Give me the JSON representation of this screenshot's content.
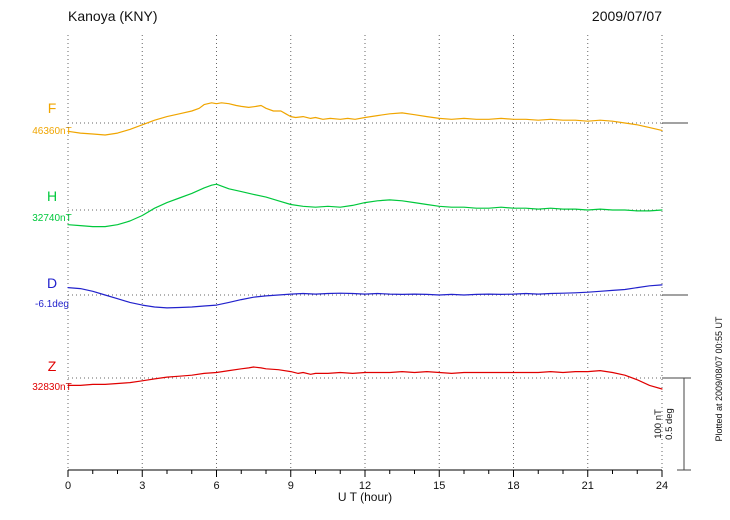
{
  "chart_data": {
    "type": "line",
    "station": "Kanoya (KNY)",
    "date": "2009/07/07",
    "xlabel": "U T (hour)",
    "x_range": [
      0,
      24
    ],
    "x_ticks": [
      0,
      3,
      6,
      9,
      12,
      15,
      18,
      21,
      24
    ],
    "scale_bar": {
      "lines": [
        "100 nT",
        "0.5 deg"
      ]
    },
    "plotted_at": "Plotted at 2009/08/07 00:55 UT",
    "series": [
      {
        "name": "F",
        "unit": "nT",
        "color": "#f0a500",
        "baseline_label": "46360nT",
        "baseline": 46360,
        "points": [
          [
            0,
            -9
          ],
          [
            0.5,
            -11
          ],
          [
            1,
            -12
          ],
          [
            1.5,
            -13
          ],
          [
            2,
            -11
          ],
          [
            2.5,
            -7
          ],
          [
            3,
            -2
          ],
          [
            3.5,
            3
          ],
          [
            4,
            7
          ],
          [
            4.5,
            10
          ],
          [
            5,
            13
          ],
          [
            5.3,
            16
          ],
          [
            5.5,
            20
          ],
          [
            5.8,
            22
          ],
          [
            6,
            21
          ],
          [
            6.2,
            22
          ],
          [
            6.5,
            21
          ],
          [
            6.8,
            19
          ],
          [
            7,
            18
          ],
          [
            7.3,
            17
          ],
          [
            7.6,
            18
          ],
          [
            7.8,
            19
          ],
          [
            8,
            16
          ],
          [
            8.3,
            13
          ],
          [
            8.6,
            13
          ],
          [
            8.8,
            10
          ],
          [
            9,
            7
          ],
          [
            9.2,
            6
          ],
          [
            9.5,
            7
          ],
          [
            9.8,
            5
          ],
          [
            10,
            6
          ],
          [
            10.3,
            4
          ],
          [
            10.6,
            5
          ],
          [
            11,
            4
          ],
          [
            11.3,
            5
          ],
          [
            11.6,
            4
          ],
          [
            12,
            6
          ],
          [
            12.5,
            8
          ],
          [
            13,
            10
          ],
          [
            13.5,
            11
          ],
          [
            14,
            9
          ],
          [
            14.5,
            7
          ],
          [
            15,
            5
          ],
          [
            15.5,
            4
          ],
          [
            16,
            5
          ],
          [
            16.5,
            4
          ],
          [
            17,
            4
          ],
          [
            17.5,
            5
          ],
          [
            18,
            4
          ],
          [
            18.5,
            4
          ],
          [
            19,
            3
          ],
          [
            19.5,
            4
          ],
          [
            20,
            3
          ],
          [
            20.5,
            3
          ],
          [
            21,
            2
          ],
          [
            21.5,
            3
          ],
          [
            22,
            2
          ],
          [
            22.5,
            0
          ],
          [
            23,
            -2
          ],
          [
            23.5,
            -5
          ],
          [
            24,
            -8
          ]
        ]
      },
      {
        "name": "H",
        "unit": "nT",
        "color": "#00c83c",
        "baseline_label": "32740nT",
        "baseline": 32740,
        "points": [
          [
            0,
            -16
          ],
          [
            0.5,
            -17
          ],
          [
            1,
            -18
          ],
          [
            1.5,
            -18
          ],
          [
            2,
            -16
          ],
          [
            2.5,
            -12
          ],
          [
            3,
            -6
          ],
          [
            3.5,
            2
          ],
          [
            4,
            8
          ],
          [
            4.5,
            13
          ],
          [
            5,
            18
          ],
          [
            5.5,
            24
          ],
          [
            5.8,
            27
          ],
          [
            6,
            28
          ],
          [
            6.2,
            26
          ],
          [
            6.5,
            23
          ],
          [
            7,
            20
          ],
          [
            7.5,
            17
          ],
          [
            8,
            14
          ],
          [
            8.5,
            10
          ],
          [
            9,
            6
          ],
          [
            9.5,
            4
          ],
          [
            10,
            3
          ],
          [
            10.5,
            4
          ],
          [
            11,
            3
          ],
          [
            11.5,
            5
          ],
          [
            12,
            8
          ],
          [
            12.5,
            10
          ],
          [
            13,
            11
          ],
          [
            13.5,
            10
          ],
          [
            14,
            8
          ],
          [
            14.5,
            6
          ],
          [
            15,
            4
          ],
          [
            15.5,
            3
          ],
          [
            16,
            3
          ],
          [
            16.5,
            2
          ],
          [
            17,
            2
          ],
          [
            17.5,
            3
          ],
          [
            18,
            2
          ],
          [
            18.5,
            2
          ],
          [
            19,
            1
          ],
          [
            19.5,
            2
          ],
          [
            20,
            1
          ],
          [
            20.5,
            1
          ],
          [
            21,
            0
          ],
          [
            21.5,
            1
          ],
          [
            22,
            0
          ],
          [
            22.5,
            0
          ],
          [
            23,
            -1
          ],
          [
            23.5,
            -1
          ],
          [
            24,
            0
          ]
        ]
      },
      {
        "name": "D",
        "unit": "deg",
        "color": "#2222cc",
        "baseline_label": "-6.1deg",
        "baseline": -6.1,
        "points": [
          [
            0,
            0.04
          ],
          [
            0.5,
            0.035
          ],
          [
            1,
            0.02
          ],
          [
            1.5,
            0
          ],
          [
            2,
            -0.02
          ],
          [
            2.5,
            -0.04
          ],
          [
            3,
            -0.055
          ],
          [
            3.5,
            -0.065
          ],
          [
            4,
            -0.07
          ],
          [
            4.5,
            -0.068
          ],
          [
            5,
            -0.065
          ],
          [
            5.5,
            -0.06
          ],
          [
            6,
            -0.055
          ],
          [
            6.5,
            -0.04
          ],
          [
            7,
            -0.025
          ],
          [
            7.5,
            -0.012
          ],
          [
            8,
            -0.005
          ],
          [
            8.5,
            0
          ],
          [
            9,
            0.005
          ],
          [
            9.5,
            0.008
          ],
          [
            10,
            0.005
          ],
          [
            10.5,
            0.008
          ],
          [
            11,
            0.01
          ],
          [
            11.5,
            0.008
          ],
          [
            12,
            0.005
          ],
          [
            12.5,
            0.008
          ],
          [
            13,
            0.005
          ],
          [
            13.5,
            0.003
          ],
          [
            14,
            0.005
          ],
          [
            14.5,
            0.003
          ],
          [
            15,
            0
          ],
          [
            15.5,
            0.003
          ],
          [
            16,
            0
          ],
          [
            16.5,
            0.003
          ],
          [
            17,
            0.005
          ],
          [
            17.5,
            0.003
          ],
          [
            18,
            0.005
          ],
          [
            18.5,
            0.008
          ],
          [
            19,
            0.005
          ],
          [
            19.5,
            0.008
          ],
          [
            20,
            0.01
          ],
          [
            20.5,
            0.012
          ],
          [
            21,
            0.015
          ],
          [
            21.5,
            0.02
          ],
          [
            22,
            0.025
          ],
          [
            22.5,
            0.03
          ],
          [
            23,
            0.04
          ],
          [
            23.5,
            0.05
          ],
          [
            24,
            0.055
          ]
        ]
      },
      {
        "name": "Z",
        "unit": "nT",
        "color": "#e00000",
        "baseline_label": "32830nT",
        "baseline": 32830,
        "points": [
          [
            0,
            -8
          ],
          [
            0.5,
            -8
          ],
          [
            1,
            -7
          ],
          [
            1.5,
            -7
          ],
          [
            2,
            -6
          ],
          [
            2.5,
            -5
          ],
          [
            3,
            -3
          ],
          [
            3.5,
            -1
          ],
          [
            4,
            1
          ],
          [
            4.5,
            2
          ],
          [
            5,
            3
          ],
          [
            5.5,
            5
          ],
          [
            6,
            6
          ],
          [
            6.5,
            8
          ],
          [
            7,
            10
          ],
          [
            7.3,
            11
          ],
          [
            7.5,
            12
          ],
          [
            7.8,
            11
          ],
          [
            8,
            10
          ],
          [
            8.5,
            9
          ],
          [
            9,
            7
          ],
          [
            9.3,
            5
          ],
          [
            9.5,
            6
          ],
          [
            9.8,
            4
          ],
          [
            10,
            5
          ],
          [
            10.5,
            5
          ],
          [
            11,
            6
          ],
          [
            11.5,
            5
          ],
          [
            12,
            6
          ],
          [
            12.5,
            6
          ],
          [
            13,
            6
          ],
          [
            13.5,
            7
          ],
          [
            14,
            6
          ],
          [
            14.5,
            7
          ],
          [
            15,
            6
          ],
          [
            15.5,
            5
          ],
          [
            16,
            6
          ],
          [
            16.5,
            6
          ],
          [
            17,
            6
          ],
          [
            17.5,
            6
          ],
          [
            18,
            6
          ],
          [
            18.5,
            6
          ],
          [
            19,
            6
          ],
          [
            19.5,
            7
          ],
          [
            20,
            6
          ],
          [
            20.5,
            7
          ],
          [
            21,
            7
          ],
          [
            21.5,
            8
          ],
          [
            22,
            6
          ],
          [
            22.5,
            3
          ],
          [
            23,
            -2
          ],
          [
            23.5,
            -8
          ],
          [
            24,
            -12
          ]
        ]
      }
    ]
  }
}
